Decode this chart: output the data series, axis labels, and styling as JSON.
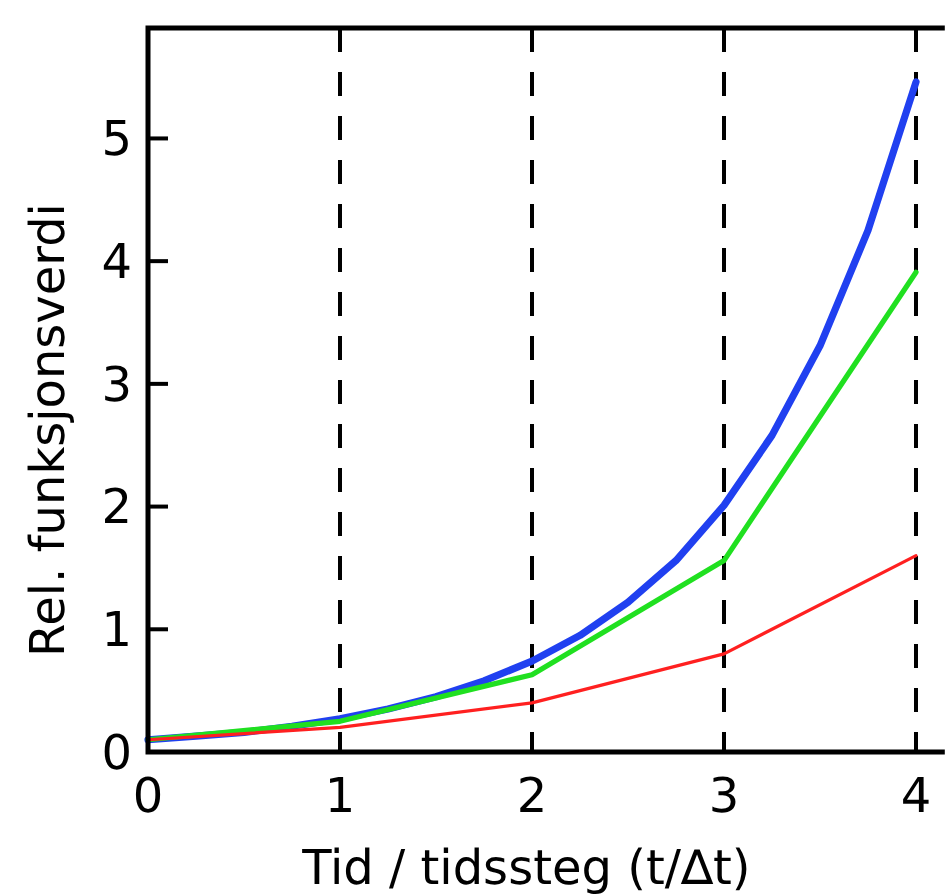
{
  "chart_data": {
    "type": "line",
    "xlabel": "Tid / tidssteg  (t/∆t)",
    "ylabel": "Rel. funksjonsverdi",
    "xlim": [
      0,
      4.15
    ],
    "ylim": [
      0,
      5.9
    ],
    "xticks": [
      0,
      1,
      2,
      3,
      4
    ],
    "yticks": [
      0,
      1,
      2,
      3,
      4,
      5
    ],
    "grid": "x",
    "line_style": "solid",
    "marker": "none",
    "series": [
      {
        "color": "#2040f0",
        "x": [
          0,
          0.25,
          0.5,
          0.75,
          1,
          1.25,
          1.5,
          1.75,
          2,
          2.25,
          2.5,
          2.75,
          3,
          3.25,
          3.5,
          3.75,
          4
        ],
        "values": [
          0.1,
          0.13,
          0.16,
          0.21,
          0.27,
          0.35,
          0.45,
          0.58,
          0.74,
          0.95,
          1.22,
          1.56,
          2.01,
          2.58,
          3.31,
          4.25,
          5.46
        ]
      },
      {
        "color": "#20e020",
        "x": [
          0,
          1,
          2,
          3,
          4
        ],
        "values": [
          0.1,
          0.25,
          0.63,
          1.56,
          3.91
        ]
      },
      {
        "color": "#ff2020",
        "x": [
          0,
          1,
          2,
          3,
          4
        ],
        "values": [
          0.1,
          0.2,
          0.4,
          0.8,
          1.6
        ]
      }
    ]
  }
}
